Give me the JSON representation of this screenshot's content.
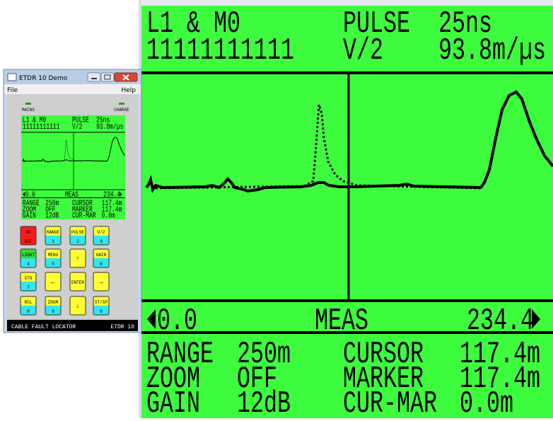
{
  "window": {
    "title": "ETDR 10 Demo",
    "menu": [
      "File",
      "Help"
    ]
  },
  "indicators": [
    "MAINS",
    "CHARGE"
  ],
  "display": {
    "line1": [
      "L1 & M0",
      "PULSE",
      "25ns"
    ],
    "line2": [
      "11111111111",
      "V/2",
      "93.8m/µs"
    ],
    "status": [
      "0.0",
      "MEAS",
      "234.4"
    ],
    "readings": [
      [
        "RANGE",
        "250m",
        "CURSOR",
        "117.4m"
      ],
      [
        "ZOOM",
        "OFF",
        "MARKER",
        "117.4m"
      ],
      [
        "GAIN",
        "12dB",
        "CUR-MAR",
        "0.0m"
      ]
    ]
  },
  "keypad": [
    {
      "top": "ON",
      "bottom": "OFF"
    },
    {
      "top": "RANGE",
      "bottom": "1"
    },
    {
      "top": "PULSE",
      "bottom": "2"
    },
    {
      "top": "V/2",
      "bottom": "3"
    },
    {
      "top": "LIGHT",
      "bottom": "4"
    },
    {
      "top": "MENU",
      "bottom": "5"
    },
    {
      "label": "↑"
    },
    {
      "top": "GAIN",
      "bottom": "6"
    },
    {
      "top": "STO",
      "bottom": "7"
    },
    {
      "label": "←"
    },
    {
      "label": "ENTER"
    },
    {
      "label": "→"
    },
    {
      "top": "RCL",
      "bottom": "8"
    },
    {
      "top": "ZOOM",
      "bottom": "9"
    },
    {
      "label": "↓"
    },
    {
      "top": "ST/SP",
      "bottom": "0"
    }
  ],
  "footer": [
    "CABLE FAULT LOCATOR",
    "ETDR 10"
  ]
}
